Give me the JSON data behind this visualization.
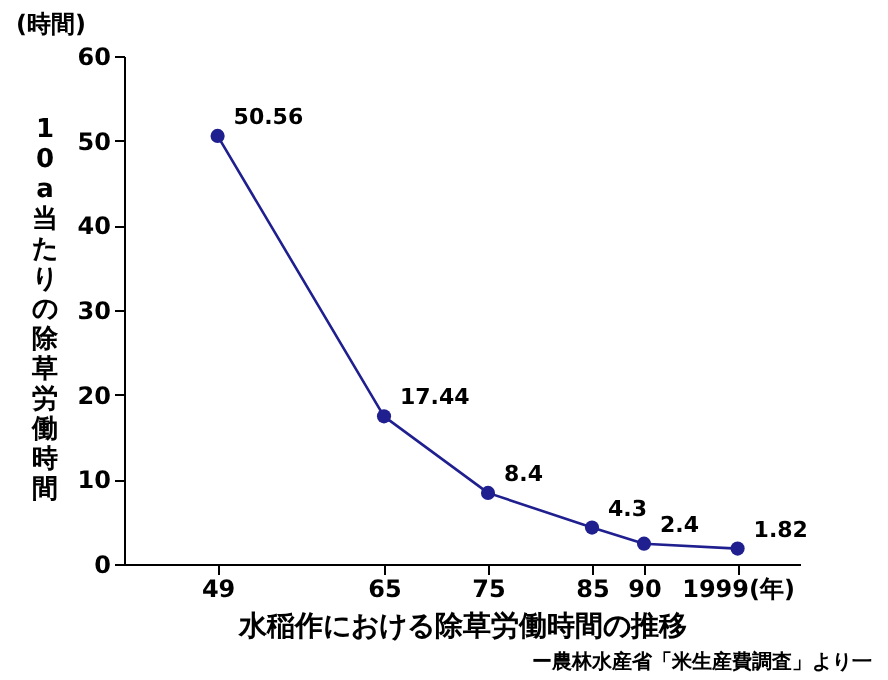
{
  "chart_data": {
    "type": "line",
    "xlabel": "水稲作における除草労働時間の推移",
    "ylabel": "10a当たりの除草労働時間",
    "annotations": [
      "(時間)",
      "ー農林水産省「米生産費調査」より一"
    ],
    "x": [
      1949,
      1965,
      1975,
      1985,
      1990,
      1999
    ],
    "series": [
      {
        "color": "#1f1f8f",
        "values": [
          50.56,
          17.44,
          8.4,
          4.3,
          2.4,
          1.82
        ]
      }
    ],
    "data_labels": true,
    "marker": "circle",
    "grid": false,
    "legend": false,
    "xlim": [
      1940,
      2005
    ],
    "xticks": [
      {
        "value": 1949,
        "label": "49"
      },
      {
        "value": 1965,
        "label": "65"
      },
      {
        "value": 1975,
        "label": "75"
      },
      {
        "value": 1985,
        "label": "85"
      },
      {
        "value": 1990,
        "label": "90"
      },
      {
        "value": 1999,
        "label": "1999(年)"
      }
    ],
    "ylim": [
      0,
      60
    ],
    "yticks": [
      0,
      10,
      20,
      30,
      40,
      50,
      60
    ]
  }
}
